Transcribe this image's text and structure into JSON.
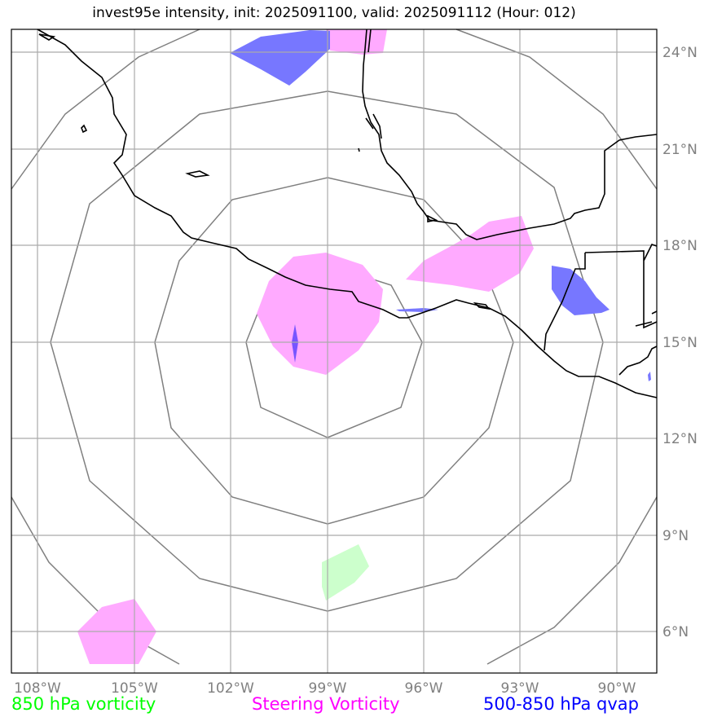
{
  "title": "invest95e intensity, init: 2025091100, valid: 2025091112 (Hour: 012)",
  "map": {
    "lon_range": [
      -108.8,
      -88.8
    ],
    "lat_range": [
      4.8,
      24.8
    ],
    "lon_ticks": [
      "108°W",
      "105°W",
      "102°W",
      "99°W",
      "96°W",
      "93°W",
      "90°W"
    ],
    "lat_ticks": [
      "24°N",
      "21°N",
      "18°N",
      "15°N",
      "12°N",
      "9°N",
      "6°N"
    ],
    "storm_center": {
      "lon": -99.0,
      "lat": 15.0
    }
  },
  "legend": {
    "vort850": {
      "label": "850 hPa vorticity",
      "color": "#00ff00"
    },
    "steering": {
      "label": "Steering Vorticity",
      "color": "#ff00ff"
    },
    "qvap": {
      "label": "500-850 hPa qvap",
      "color": "#0000ff"
    }
  },
  "colors": {
    "grid": "#aaaaaa",
    "range_rings": "#808080",
    "coast": "#000000",
    "steering_fill": "#ffaaff",
    "qvap_fill": "#7777ff",
    "vort850_fill": "#ccffcc"
  }
}
